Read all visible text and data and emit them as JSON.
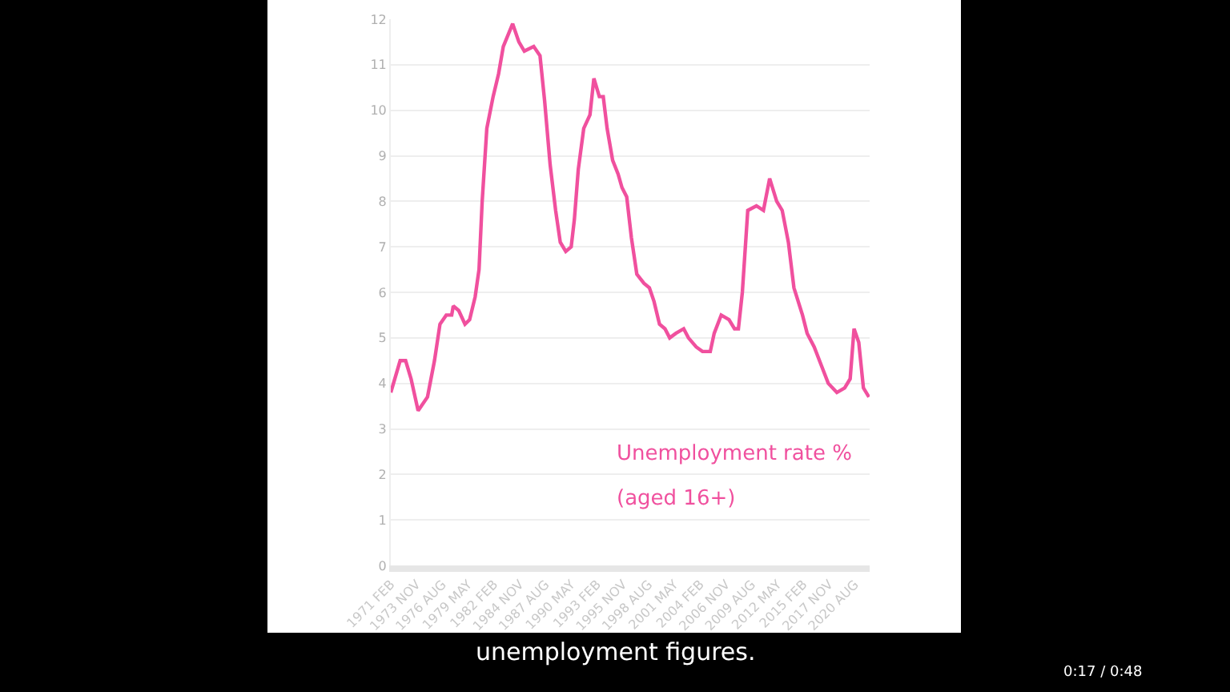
{
  "chart_data": {
    "type": "line",
    "x": [
      "1971-02",
      "1972-02",
      "1972-09",
      "1973-04",
      "1974-01",
      "1975-01",
      "1975-10",
      "1976-05",
      "1977-01",
      "1977-08",
      "1977-10",
      "1978-05",
      "1979-01",
      "1979-07",
      "1980-02",
      "1980-07",
      "1980-11",
      "1981-05",
      "1982-01",
      "1982-08",
      "1983-02",
      "1984-02",
      "1984-10",
      "1985-05",
      "1986-05",
      "1987-01",
      "1987-07",
      "1988-02",
      "1988-09",
      "1989-03",
      "1989-10",
      "1990-05",
      "1990-09",
      "1991-02",
      "1991-09",
      "1992-05",
      "1992-10",
      "1993-05",
      "1993-10",
      "1994-03",
      "1994-10",
      "1995-05",
      "1995-10",
      "1996-04",
      "1996-10",
      "1997-05",
      "1998-02",
      "1998-09",
      "1999-03",
      "1999-10",
      "2000-05",
      "2000-11",
      "2001-07",
      "2002-05",
      "2002-11",
      "2003-09",
      "2004-05",
      "2005-03",
      "2005-08",
      "2006-05",
      "2007-03",
      "2007-10",
      "2008-03",
      "2008-08",
      "2009-03",
      "2010-02",
      "2010-11",
      "2011-07",
      "2012-04",
      "2012-11",
      "2013-07",
      "2014-02",
      "2015-01",
      "2015-07",
      "2016-04",
      "2017-01",
      "2017-10",
      "2018-09",
      "2019-07",
      "2020-02",
      "2020-07",
      "2021-01",
      "2021-07",
      "2022-02"
    ],
    "series": [
      {
        "color": "#f0509e",
        "values": [
          3.8,
          4.5,
          4.5,
          4.1,
          3.4,
          3.7,
          4.5,
          5.3,
          5.5,
          5.5,
          5.7,
          5.6,
          5.3,
          5.4,
          5.9,
          6.5,
          8.0,
          9.6,
          10.3,
          10.8,
          11.4,
          11.9,
          11.5,
          11.3,
          11.4,
          11.2,
          10.2,
          8.8,
          7.8,
          7.1,
          6.9,
          7.0,
          7.6,
          8.7,
          9.6,
          9.9,
          10.7,
          10.3,
          10.3,
          9.6,
          8.9,
          8.6,
          8.3,
          8.1,
          7.2,
          6.4,
          6.2,
          6.1,
          5.8,
          5.3,
          5.2,
          5.0,
          5.1,
          5.2,
          5.0,
          4.8,
          4.7,
          4.7,
          5.1,
          5.5,
          5.4,
          5.2,
          5.2,
          6.0,
          7.8,
          7.9,
          7.8,
          8.5,
          8.0,
          7.8,
          7.1,
          6.1,
          5.5,
          5.1,
          4.8,
          4.4,
          4.0,
          3.8,
          3.9,
          4.1,
          5.2,
          4.9,
          3.9,
          3.7
        ]
      }
    ],
    "xlim": [
      "1971-02",
      "2022-03"
    ],
    "xticks": [
      {
        "value": "1971-02",
        "label": "1971 FEB"
      },
      {
        "value": "1973-11",
        "label": "1973 NOV"
      },
      {
        "value": "1976-08",
        "label": "1976 AUG"
      },
      {
        "value": "1979-05",
        "label": "1979 MAY"
      },
      {
        "value": "1982-02",
        "label": "1982 FEB"
      },
      {
        "value": "1984-11",
        "label": "1984 NOV"
      },
      {
        "value": "1987-08",
        "label": "1987 AUG"
      },
      {
        "value": "1990-05",
        "label": "1990 MAY"
      },
      {
        "value": "1993-02",
        "label": "1993 FEB"
      },
      {
        "value": "1995-11",
        "label": "1995 NOV"
      },
      {
        "value": "1998-08",
        "label": "1998 AUG"
      },
      {
        "value": "2001-05",
        "label": "2001 MAY"
      },
      {
        "value": "2004-02",
        "label": "2004 FEB"
      },
      {
        "value": "2006-11",
        "label": "2006 NOV"
      },
      {
        "value": "2009-08",
        "label": "2009 AUG"
      },
      {
        "value": "2012-05",
        "label": "2012 MAY"
      },
      {
        "value": "2015-02",
        "label": "2015 FEB"
      },
      {
        "value": "2017-11",
        "label": "2017 NOV"
      },
      {
        "value": "2020-08",
        "label": "2020 AUG"
      }
    ],
    "ylim": [
      0,
      12
    ],
    "yticks": [
      0,
      1,
      2,
      3,
      4,
      5,
      6,
      7,
      8,
      9,
      10,
      11,
      12
    ],
    "grid": "y",
    "line_style": "solid",
    "annotations": [
      "Unemployment rate %",
      "(aged 16+)",
      "unemployment figures.",
      "0:17 / 0:48"
    ]
  }
}
